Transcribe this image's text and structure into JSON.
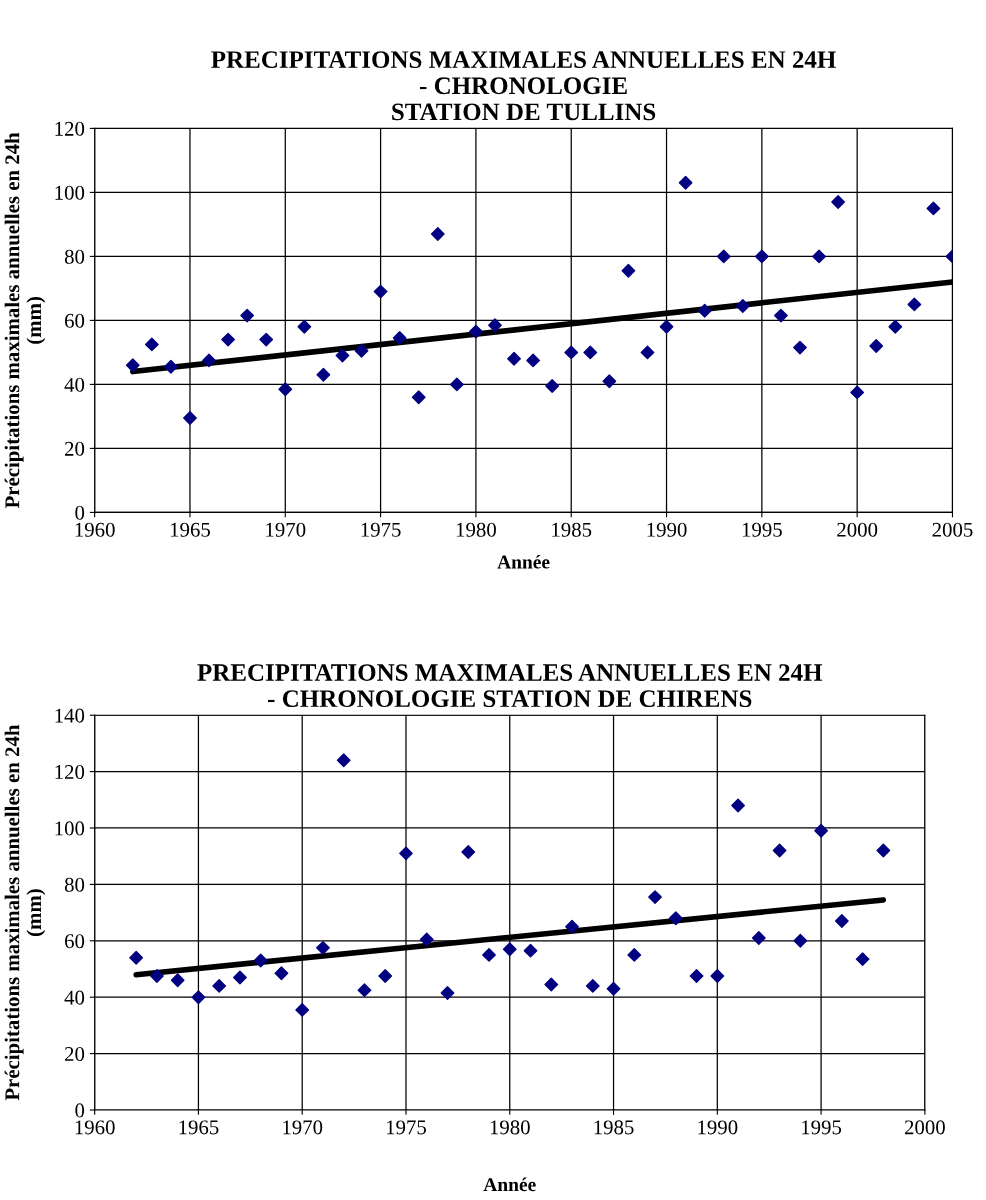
{
  "chart_data": [
    {
      "type": "scatter",
      "title": "PRECIPITATIONS MAXIMALES ANNUELLES EN 24H\n- CHRONOLOGIE\nSTATION DE TULLINS",
      "xlabel": "Année",
      "ylabel": "Précipitations maximales annuelles en 24h\n(mm)",
      "xlim": [
        1960,
        2005
      ],
      "xticks": [
        1960,
        1965,
        1970,
        1975,
        1980,
        1985,
        1990,
        1995,
        2000,
        2005
      ],
      "ylim": [
        0,
        120
      ],
      "yticks": [
        0,
        20,
        40,
        60,
        80,
        100,
        120
      ],
      "grid": true,
      "marker": "diamond",
      "series": [
        {
          "color": "#000080",
          "x": [
            1962,
            1963,
            1964,
            1965,
            1966,
            1967,
            1968,
            1969,
            1970,
            1971,
            1972,
            1973,
            1974,
            1975,
            1976,
            1977,
            1978,
            1979,
            1980,
            1981,
            1982,
            1983,
            1984,
            1985,
            1986,
            1987,
            1988,
            1989,
            1990,
            1991,
            1992,
            1993,
            1994,
            1995,
            1996,
            1997,
            1998,
            1999,
            2000,
            2001,
            2002,
            2003,
            2004,
            2005
          ],
          "values": [
            46,
            52.5,
            45.5,
            29.5,
            47.5,
            54,
            61.5,
            54,
            38.5,
            58,
            43,
            49,
            50.5,
            69,
            54.5,
            36,
            87,
            40,
            56.5,
            58.5,
            48,
            47.5,
            39.5,
            50,
            50,
            41,
            75.5,
            50,
            58,
            103,
            63,
            80,
            64.5,
            80,
            61.5,
            51.5,
            80,
            97,
            37.5,
            52,
            58,
            65,
            95,
            80
          ]
        },
        {
          "type": "line",
          "color": "#000000",
          "marker": "none",
          "x": [
            1962,
            2005
          ],
          "values": [
            44,
            72
          ]
        }
      ]
    },
    {
      "type": "scatter",
      "title": "PRECIPITATIONS MAXIMALES ANNUELLES EN 24H\n- CHRONOLOGIE STATION DE CHIRENS",
      "xlabel": "Année",
      "ylabel": "Précipitations maximales annuelles en 24h\n(mm)",
      "xlim": [
        1960,
        2000
      ],
      "xticks": [
        1960,
        1965,
        1970,
        1975,
        1980,
        1985,
        1990,
        1995,
        2000
      ],
      "ylim": [
        0,
        140
      ],
      "yticks": [
        0,
        20,
        40,
        60,
        80,
        100,
        120,
        140
      ],
      "grid": true,
      "marker": "diamond",
      "series": [
        {
          "color": "#000080",
          "x": [
            1962,
            1963,
            1964,
            1965,
            1966,
            1967,
            1968,
            1969,
            1970,
            1971,
            1972,
            1973,
            1974,
            1975,
            1976,
            1977,
            1978,
            1979,
            1980,
            1981,
            1982,
            1983,
            1984,
            1985,
            1986,
            1987,
            1988,
            1989,
            1990,
            1991,
            1992,
            1993,
            1994,
            1995,
            1996,
            1997,
            1998
          ],
          "values": [
            54,
            47.5,
            46,
            40,
            44,
            47,
            53,
            48.5,
            35.5,
            57.5,
            124,
            42.5,
            47.5,
            91,
            60.5,
            41.5,
            91.5,
            55,
            57,
            56.5,
            44.5,
            65,
            44,
            43,
            55,
            75.5,
            68,
            47.5,
            47.5,
            108,
            61,
            92,
            60,
            99,
            67,
            53.5,
            92
          ]
        },
        {
          "type": "line",
          "color": "#000000",
          "marker": "none",
          "x": [
            1962,
            1998
          ],
          "values": [
            48,
            74.5
          ]
        }
      ]
    }
  ]
}
